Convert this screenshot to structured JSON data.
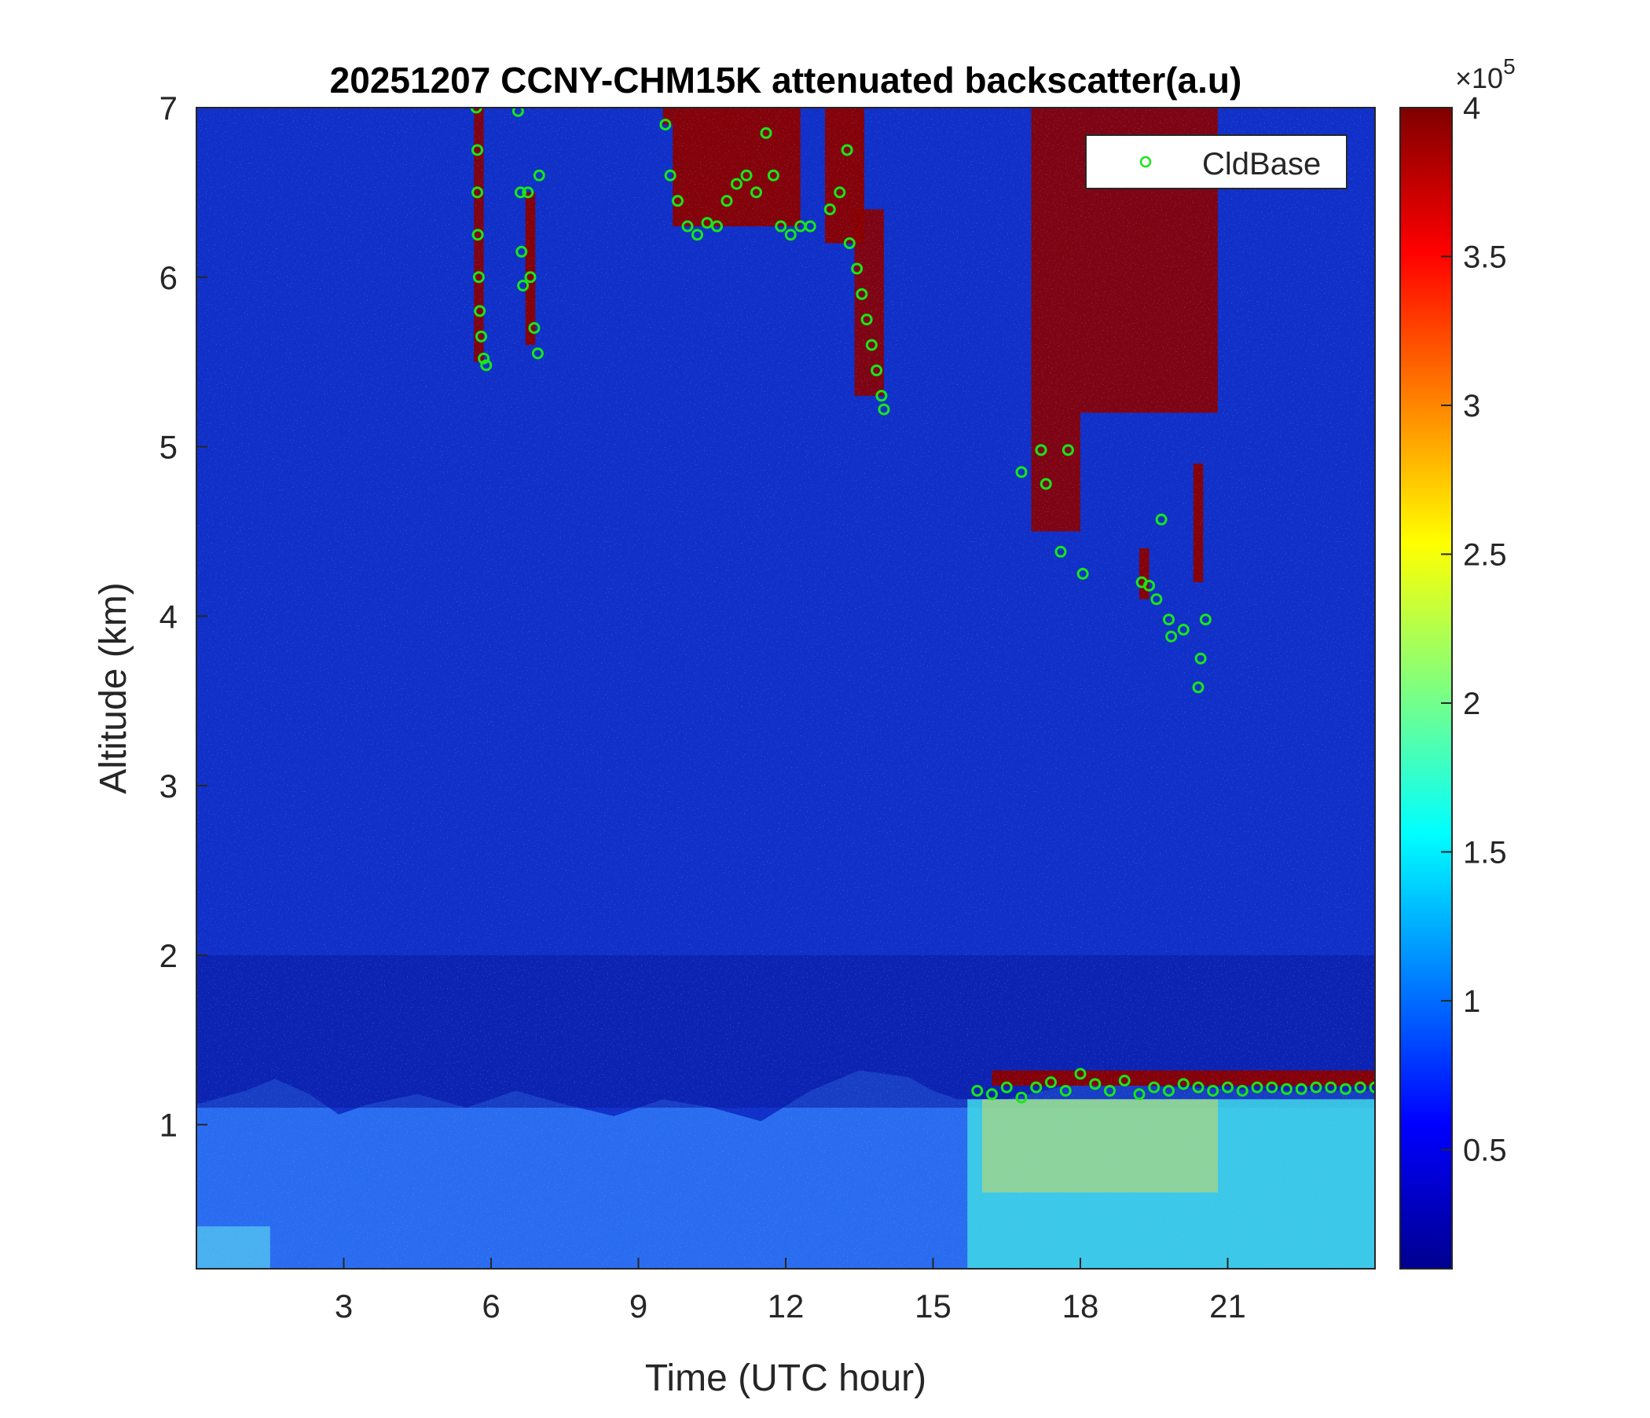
{
  "chart_data": {
    "type": "heatmap",
    "title": "20251207 CCNY-CHM15K attenuated backscatter(a.u)",
    "xlabel": "Time (UTC hour)",
    "ylabel": "Altitude (km)",
    "xlim": [
      0,
      24
    ],
    "ylim": [
      0.15,
      7
    ],
    "x_ticks": [
      3,
      6,
      9,
      12,
      15,
      18,
      21
    ],
    "y_ticks": [
      1,
      2,
      3,
      4,
      5,
      6,
      7
    ],
    "colorbar": {
      "colormap": "jet",
      "range": [
        10000,
        400000
      ],
      "ticks": [
        0.5,
        1,
        1.5,
        2,
        2.5,
        3,
        3.5,
        4
      ],
      "multiplier": "×10",
      "exponent": "5"
    },
    "legend": {
      "position": "top-right",
      "entries": [
        {
          "name": "CldBase",
          "marker": "circle",
          "color": "#19e619"
        }
      ]
    },
    "boundary_layer_top_km": [
      {
        "x": 0.0,
        "y": 1.12
      },
      {
        "x": 1.0,
        "y": 1.2
      },
      {
        "x": 1.6,
        "y": 1.27
      },
      {
        "x": 2.3,
        "y": 1.18
      },
      {
        "x": 2.9,
        "y": 1.06
      },
      {
        "x": 3.5,
        "y": 1.12
      },
      {
        "x": 4.5,
        "y": 1.18
      },
      {
        "x": 5.5,
        "y": 1.1
      },
      {
        "x": 6.5,
        "y": 1.2
      },
      {
        "x": 7.5,
        "y": 1.12
      },
      {
        "x": 8.5,
        "y": 1.05
      },
      {
        "x": 9.5,
        "y": 1.15
      },
      {
        "x": 10.5,
        "y": 1.1
      },
      {
        "x": 11.5,
        "y": 1.02
      },
      {
        "x": 12.5,
        "y": 1.2
      },
      {
        "x": 13.5,
        "y": 1.32
      },
      {
        "x": 14.5,
        "y": 1.28
      },
      {
        "x": 15.0,
        "y": 1.2
      },
      {
        "x": 15.5,
        "y": 1.15
      },
      {
        "x": 16.5,
        "y": 1.15
      },
      {
        "x": 18.0,
        "y": 1.25
      },
      {
        "x": 20.0,
        "y": 1.22
      },
      {
        "x": 22.0,
        "y": 1.2
      },
      {
        "x": 24.0,
        "y": 1.2
      }
    ],
    "cloud_layers": [
      {
        "t0": 5.65,
        "t1": 5.85,
        "base_km": 5.5,
        "top_km": 7.0
      },
      {
        "t0": 6.7,
        "t1": 6.9,
        "base_km": 5.6,
        "top_km": 6.5
      },
      {
        "t0": 9.5,
        "t1": 9.7,
        "base_km": 6.9,
        "top_km": 7.0
      },
      {
        "t0": 9.7,
        "t1": 12.3,
        "base_km": 6.3,
        "top_km": 7.0
      },
      {
        "t0": 12.8,
        "t1": 13.6,
        "base_km": 6.2,
        "top_km": 7.0
      },
      {
        "t0": 13.4,
        "t1": 14.0,
        "base_km": 5.3,
        "top_km": 6.4
      },
      {
        "t0": 17.0,
        "t1": 18.0,
        "base_km": 4.5,
        "top_km": 7.0
      },
      {
        "t0": 18.0,
        "t1": 20.8,
        "base_km": 5.2,
        "top_km": 7.0
      },
      {
        "t0": 19.2,
        "t1": 19.4,
        "base_km": 4.1,
        "top_km": 4.4
      },
      {
        "t0": 20.3,
        "t1": 20.5,
        "base_km": 4.2,
        "top_km": 4.9
      },
      {
        "t0": 16.2,
        "t1": 24.0,
        "base_km": 1.23,
        "top_km": 1.32
      }
    ],
    "cloud_base_km": [
      {
        "x": 5.7,
        "y": 7.0
      },
      {
        "x": 5.72,
        "y": 6.75
      },
      {
        "x": 5.72,
        "y": 6.5
      },
      {
        "x": 5.73,
        "y": 6.25
      },
      {
        "x": 5.75,
        "y": 6.0
      },
      {
        "x": 5.77,
        "y": 5.8
      },
      {
        "x": 5.8,
        "y": 5.65
      },
      {
        "x": 5.85,
        "y": 5.52
      },
      {
        "x": 5.9,
        "y": 5.48
      },
      {
        "x": 6.55,
        "y": 6.98
      },
      {
        "x": 6.6,
        "y": 6.5
      },
      {
        "x": 6.62,
        "y": 6.15
      },
      {
        "x": 6.65,
        "y": 5.95
      },
      {
        "x": 6.75,
        "y": 6.5
      },
      {
        "x": 6.8,
        "y": 6.0
      },
      {
        "x": 6.88,
        "y": 5.7
      },
      {
        "x": 6.95,
        "y": 5.55
      },
      {
        "x": 6.98,
        "y": 6.6
      },
      {
        "x": 9.55,
        "y": 6.9
      },
      {
        "x": 9.65,
        "y": 6.6
      },
      {
        "x": 9.8,
        "y": 6.45
      },
      {
        "x": 10.0,
        "y": 6.3
      },
      {
        "x": 10.2,
        "y": 6.25
      },
      {
        "x": 10.4,
        "y": 6.32
      },
      {
        "x": 10.6,
        "y": 6.3
      },
      {
        "x": 10.8,
        "y": 6.45
      },
      {
        "x": 11.0,
        "y": 6.55
      },
      {
        "x": 11.2,
        "y": 6.6
      },
      {
        "x": 11.4,
        "y": 6.5
      },
      {
        "x": 11.6,
        "y": 6.85
      },
      {
        "x": 11.75,
        "y": 6.6
      },
      {
        "x": 11.9,
        "y": 6.3
      },
      {
        "x": 12.1,
        "y": 6.25
      },
      {
        "x": 12.3,
        "y": 6.3
      },
      {
        "x": 12.5,
        "y": 6.3
      },
      {
        "x": 12.9,
        "y": 6.4
      },
      {
        "x": 13.1,
        "y": 6.5
      },
      {
        "x": 13.25,
        "y": 6.75
      },
      {
        "x": 13.3,
        "y": 6.2
      },
      {
        "x": 13.45,
        "y": 6.05
      },
      {
        "x": 13.55,
        "y": 5.9
      },
      {
        "x": 13.65,
        "y": 5.75
      },
      {
        "x": 13.75,
        "y": 5.6
      },
      {
        "x": 13.85,
        "y": 5.45
      },
      {
        "x": 13.95,
        "y": 5.3
      },
      {
        "x": 14.0,
        "y": 5.22
      },
      {
        "x": 16.8,
        "y": 4.85
      },
      {
        "x": 17.2,
        "y": 4.98
      },
      {
        "x": 17.3,
        "y": 4.78
      },
      {
        "x": 17.6,
        "y": 4.38
      },
      {
        "x": 17.75,
        "y": 4.98
      },
      {
        "x": 18.05,
        "y": 4.25
      },
      {
        "x": 19.25,
        "y": 4.2
      },
      {
        "x": 19.4,
        "y": 4.18
      },
      {
        "x": 19.55,
        "y": 4.1
      },
      {
        "x": 19.65,
        "y": 4.57
      },
      {
        "x": 19.8,
        "y": 3.98
      },
      {
        "x": 19.85,
        "y": 3.88
      },
      {
        "x": 20.1,
        "y": 3.92
      },
      {
        "x": 20.4,
        "y": 3.58
      },
      {
        "x": 20.45,
        "y": 3.75
      },
      {
        "x": 20.55,
        "y": 3.98
      },
      {
        "x": 15.9,
        "y": 1.2
      },
      {
        "x": 16.2,
        "y": 1.18
      },
      {
        "x": 16.5,
        "y": 1.22
      },
      {
        "x": 16.8,
        "y": 1.16
      },
      {
        "x": 17.1,
        "y": 1.22
      },
      {
        "x": 17.4,
        "y": 1.25
      },
      {
        "x": 17.7,
        "y": 1.2
      },
      {
        "x": 18.0,
        "y": 1.3
      },
      {
        "x": 18.3,
        "y": 1.24
      },
      {
        "x": 18.6,
        "y": 1.2
      },
      {
        "x": 18.9,
        "y": 1.26
      },
      {
        "x": 19.2,
        "y": 1.18
      },
      {
        "x": 19.5,
        "y": 1.22
      },
      {
        "x": 19.8,
        "y": 1.2
      },
      {
        "x": 20.1,
        "y": 1.24
      },
      {
        "x": 20.4,
        "y": 1.22
      },
      {
        "x": 20.7,
        "y": 1.2
      },
      {
        "x": 21.0,
        "y": 1.22
      },
      {
        "x": 21.3,
        "y": 1.2
      },
      {
        "x": 21.6,
        "y": 1.22
      },
      {
        "x": 21.9,
        "y": 1.22
      },
      {
        "x": 22.2,
        "y": 1.21
      },
      {
        "x": 22.5,
        "y": 1.21
      },
      {
        "x": 22.8,
        "y": 1.22
      },
      {
        "x": 23.1,
        "y": 1.22
      },
      {
        "x": 23.4,
        "y": 1.21
      },
      {
        "x": 23.7,
        "y": 1.22
      },
      {
        "x": 24.0,
        "y": 1.22
      }
    ]
  }
}
